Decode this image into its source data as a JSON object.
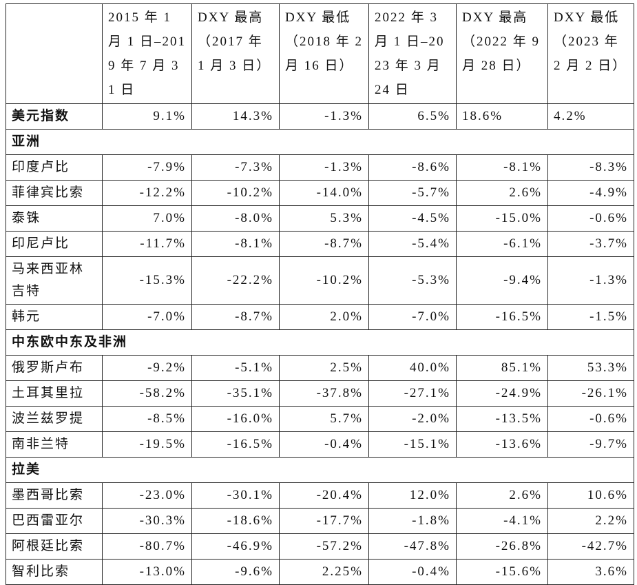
{
  "table": {
    "header": [
      "2015 年 1 月 1 日–2019 年 7 月 31 日",
      "DXY 最高（2017 年 1 月 3 日）",
      "DXY 最低（2018 年 2 月 16 日）",
      "2022 年 3 月 1 日–2023 年 3 月 24 日",
      "DXY 最高（2022 年 9 月 28 日）",
      "DXY 最低（2023 年 2 月 2 日）"
    ],
    "rows": [
      {
        "label": "美元指数",
        "values": [
          "9.1%",
          "14.3%",
          "-1.3%",
          "6.5%",
          "18.6%",
          "4.2%"
        ]
      },
      {
        "label": "亚洲"
      },
      {
        "label": "印度卢比",
        "values": [
          "-7.9%",
          "-7.3%",
          "-1.3%",
          "-8.6%",
          "-8.1%",
          "-8.3%"
        ]
      },
      {
        "label": "菲律宾比索",
        "values": [
          "-12.2%",
          "-10.2%",
          "-14.0%",
          "-5.7%",
          "2.6%",
          "-4.9%"
        ]
      },
      {
        "label": "泰铢",
        "values": [
          "7.0%",
          "-8.0%",
          "5.3%",
          "-4.5%",
          "-15.0%",
          "-0.6%"
        ]
      },
      {
        "label": "印尼卢比",
        "values": [
          "-11.7%",
          "-8.1%",
          "-8.7%",
          "-5.4%",
          "-6.1%",
          "-3.7%"
        ]
      },
      {
        "label": "马来西亚林吉特",
        "values": [
          "-15.3%",
          "-22.2%",
          "-10.2%",
          "-5.3%",
          "-9.4%",
          "-1.3%"
        ]
      },
      {
        "label": "韩元",
        "values": [
          "-7.0%",
          "-8.7%",
          "2.0%",
          "-7.0%",
          "-16.5%",
          "-1.5%"
        ]
      },
      {
        "label": "中东欧中东及非洲"
      },
      {
        "label": "俄罗斯卢布",
        "values": [
          "-9.2%",
          "-5.1%",
          "2.5%",
          "40.0%",
          "85.1%",
          "53.3%"
        ]
      },
      {
        "label": "土耳其里拉",
        "values": [
          "-58.2%",
          "-35.1%",
          "-37.8%",
          "-27.1%",
          "-24.9%",
          "-26.1%"
        ]
      },
      {
        "label": "波兰兹罗提",
        "values": [
          "-8.5%",
          "-16.0%",
          "5.7%",
          "-2.0%",
          "-13.5%",
          "-0.6%"
        ]
      },
      {
        "label": "南非兰特",
        "values": [
          "-19.5%",
          "-16.5%",
          "-0.4%",
          "-15.1%",
          "-13.6%",
          "-9.7%"
        ]
      },
      {
        "label": "拉美"
      },
      {
        "label": "墨西哥比索",
        "values": [
          "-23.0%",
          "-30.1%",
          "-20.4%",
          "12.0%",
          "2.6%",
          "10.6%"
        ]
      },
      {
        "label": "巴西雷亚尔",
        "values": [
          "-30.3%",
          "-18.6%",
          "-17.7%",
          "-1.8%",
          "-4.1%",
          "2.2%"
        ]
      },
      {
        "label": "阿根廷比索",
        "values": [
          "-80.7%",
          "-46.9%",
          "-57.2%",
          "-47.8%",
          "-26.8%",
          "-42.7%"
        ]
      },
      {
        "label": "智利比索",
        "values": [
          "-13.0%",
          "-9.6%",
          "2.25%",
          "-0.4%",
          "-15.6%",
          "3.6%"
        ]
      }
    ]
  }
}
